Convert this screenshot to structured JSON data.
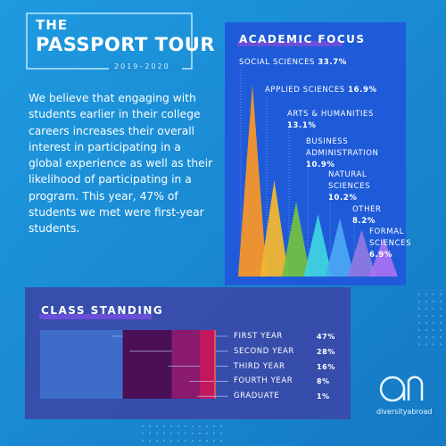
{
  "header": {
    "kicker": "THE",
    "title": "PASSPORT TOUR",
    "years": "2019–2020"
  },
  "body": {
    "paragraph": "We believe that engaging with students earlier in their college careers increases their overall interest in participating in a global experience as well as their likelihood of participating in a program. This year, 47% of students we met were first-year students."
  },
  "chart_data": [
    {
      "type": "spike",
      "title": "ACADEMIC FOCUS",
      "categories": [
        "SOCIAL SCIENCES",
        "APPLIED SCIENCES",
        "ARTS & HUMANITIES",
        "BUSINESS ADMINISTRATION",
        "NATURAL SCIENCES",
        "OTHER",
        "FORMAL SCIENCES"
      ],
      "values": [
        33.7,
        16.9,
        13.1,
        10.9,
        10.2,
        8.2,
        6.9
      ],
      "value_labels": [
        "33.7%",
        "16.9%",
        "13.1%",
        "10.9%",
        "10.2%",
        "8.2%",
        "6.9%"
      ],
      "colors": [
        "#f7962a",
        "#f2b731",
        "#72c043",
        "#3fd2e0",
        "#4aa6f2",
        "#8d79e0",
        "#a572f2"
      ]
    },
    {
      "type": "stacked-bar",
      "title": "CLASS STANDING",
      "categories": [
        "FIRST YEAR",
        "SECOND YEAR",
        "THIRD YEAR",
        "FOURTH YEAR",
        "GRADUATE"
      ],
      "values": [
        47,
        28,
        16,
        8,
        1
      ],
      "value_labels": [
        "47%",
        "28%",
        "16%",
        "8%",
        "1%"
      ],
      "colors": [
        "#3d6cc9",
        "#4a0f55",
        "#8a1a6e",
        "#c2185b",
        "#e0555a"
      ]
    }
  ],
  "logo": {
    "text": "diversityabroad"
  }
}
